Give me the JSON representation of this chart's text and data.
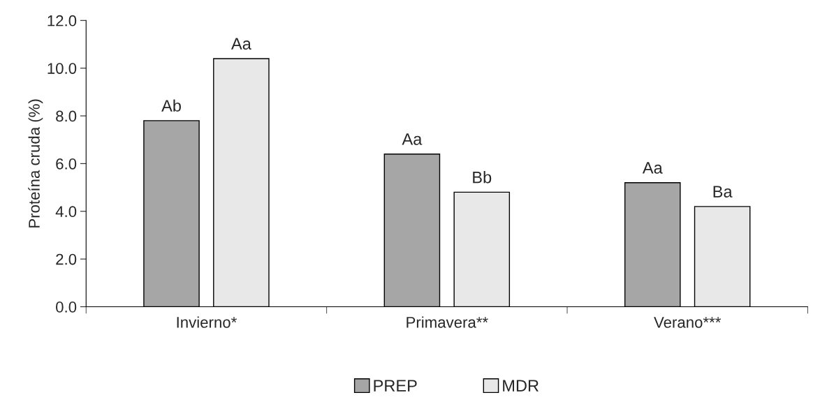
{
  "chart_data": {
    "type": "bar",
    "ylabel": "Proteína cruda (%)",
    "categories": [
      "Invierno*",
      "Primavera**",
      "Verano***"
    ],
    "series": [
      {
        "name": "PREP",
        "color": "#a6a6a6",
        "values": [
          7.8,
          6.4,
          5.2
        ],
        "value_labels": [
          "Ab",
          "Aa",
          "Aa"
        ]
      },
      {
        "name": "MDR",
        "color": "#e8e8e8",
        "values": [
          10.4,
          4.8,
          4.2
        ],
        "value_labels": [
          "Aa",
          "Bb",
          "Ba"
        ]
      }
    ],
    "ylim": [
      0,
      12
    ],
    "yticks": [
      {
        "value": 0,
        "label": "0.0"
      },
      {
        "value": 2,
        "label": "2.0"
      },
      {
        "value": 4,
        "label": "4.0"
      },
      {
        "value": 6,
        "label": "6.0"
      },
      {
        "value": 8,
        "label": "8.0"
      },
      {
        "value": 10,
        "label": "10.0"
      },
      {
        "value": 12,
        "label": "12.0"
      }
    ],
    "grid": false,
    "legend": "bottom"
  }
}
